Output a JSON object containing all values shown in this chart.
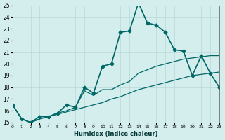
{
  "xlabel": "Humidex (Indice chaleur)",
  "ylabel": "",
  "background_color": "#d4eeee",
  "grid_color": "#b8d8d8",
  "line_color": "#006666",
  "xlim": [
    0,
    23
  ],
  "ylim": [
    15,
    25
  ],
  "yticks": [
    15,
    16,
    17,
    18,
    19,
    20,
    21,
    22,
    23,
    24,
    25
  ],
  "xticks": [
    0,
    1,
    2,
    3,
    4,
    5,
    6,
    7,
    8,
    9,
    10,
    11,
    12,
    13,
    14,
    15,
    16,
    17,
    18,
    19,
    20,
    21,
    22,
    23
  ],
  "series": [
    {
      "x": [
        0,
        1,
        2,
        3,
        4,
        5,
        6,
        7,
        8,
        9,
        10,
        11,
        12,
        13,
        14,
        15,
        16,
        17,
        18,
        19,
        20,
        21,
        22,
        23
      ],
      "y": [
        16.5,
        15.3,
        15.0,
        15.5,
        15.5,
        15.8,
        16.5,
        16.3,
        18.0,
        17.5,
        19.8,
        20.0,
        22.7,
        22.8,
        25.2,
        23.5,
        23.3,
        22.7,
        21.2,
        21.1,
        19.0,
        20.7,
        19.2,
        18.0
      ],
      "color": "#006666",
      "linewidth": 1.2,
      "marker": "D",
      "markersize": 2.5
    },
    {
      "x": [
        0,
        1,
        2,
        3,
        4,
        5,
        6,
        7,
        8,
        9,
        10,
        11,
        12,
        13,
        14,
        15,
        16,
        17,
        18,
        19,
        20,
        21,
        22,
        23
      ],
      "y": [
        16.5,
        15.3,
        15.0,
        15.3,
        15.5,
        15.8,
        16.0,
        16.3,
        17.7,
        17.3,
        17.8,
        17.8,
        18.2,
        18.5,
        19.2,
        19.5,
        19.8,
        20.0,
        20.2,
        20.4,
        20.5,
        20.6,
        20.7,
        20.7
      ],
      "color": "#006666",
      "linewidth": 0.9,
      "marker": null,
      "markersize": 0
    },
    {
      "x": [
        0,
        1,
        2,
        3,
        4,
        5,
        6,
        7,
        8,
        9,
        10,
        11,
        12,
        13,
        14,
        15,
        16,
        17,
        18,
        19,
        20,
        21,
        22,
        23
      ],
      "y": [
        16.5,
        15.3,
        15.0,
        15.3,
        15.5,
        15.7,
        15.9,
        16.1,
        16.3,
        16.5,
        16.7,
        17.0,
        17.2,
        17.5,
        17.8,
        18.0,
        18.2,
        18.4,
        18.6,
        18.8,
        19.0,
        19.1,
        19.2,
        19.3
      ],
      "color": "#006666",
      "linewidth": 0.9,
      "marker": null,
      "markersize": 0
    }
  ]
}
